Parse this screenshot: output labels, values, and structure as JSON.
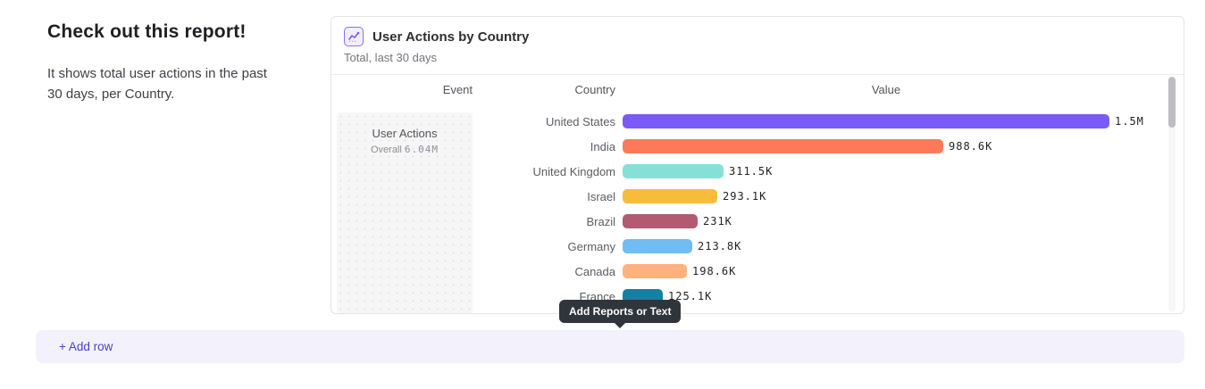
{
  "intro": {
    "heading": "Check out this report!",
    "description": "It shows total user actions in the past 30 days, per Country."
  },
  "report_card": {
    "icon": "line-chart-icon",
    "title": "User Actions by Country",
    "subtitle": "Total, last 30 days",
    "columns": {
      "event": "Event",
      "country": "Country",
      "value": "Value"
    },
    "event_cell": {
      "name": "User Actions",
      "overall_label": "Overall",
      "overall_value": "6.04M"
    }
  },
  "chart_data": {
    "type": "bar",
    "orientation": "horizontal",
    "title": "User Actions by Country",
    "subtitle": "Total, last 30 days",
    "categories": [
      "United States",
      "India",
      "United Kingdom",
      "Israel",
      "Brazil",
      "Germany",
      "Canada",
      "France"
    ],
    "values": [
      1500000,
      988600,
      311500,
      293100,
      231000,
      213800,
      198600,
      125100
    ],
    "value_labels": [
      "1.5M",
      "988.6K",
      "311.5K",
      "293.1K",
      "231K",
      "213.8K",
      "198.6K",
      "125.1K"
    ],
    "bar_colors": [
      "#7a5af8",
      "#fc7a58",
      "#85e0d8",
      "#f8bc3c",
      "#b25a72",
      "#70bcf4",
      "#ffb27d",
      "#1480a4"
    ],
    "xlim": [
      0,
      1500000
    ],
    "legend": false,
    "grid": false
  },
  "tooltip": {
    "label": "Add Reports or Text"
  },
  "add_row": {
    "label": "+ Add row"
  },
  "colors": {
    "accent_purple": "#7a5af8",
    "add_row_bg": "#f3f1fc",
    "add_row_text": "#4b3fc8",
    "tooltip_bg": "#30353c"
  }
}
